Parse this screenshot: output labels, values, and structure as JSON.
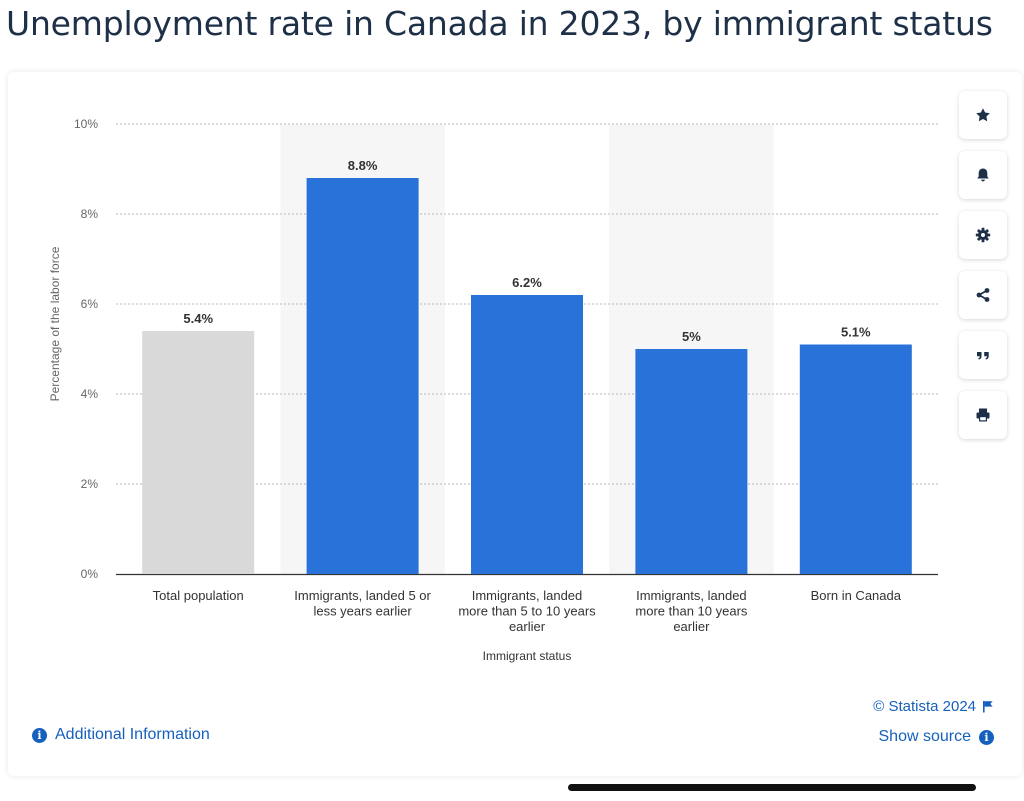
{
  "page": {
    "title": "Unemployment rate in Canada in 2023, by immigrant status"
  },
  "chart_data": {
    "type": "bar",
    "categories": [
      [
        "Total population"
      ],
      [
        "Immigrants, landed 5 or",
        "less years earlier"
      ],
      [
        "Immigrants, landed",
        "more than 5 to 10 years",
        "earlier"
      ],
      [
        "Immigrants, landed",
        "more than 10 years",
        "earlier"
      ],
      [
        "Born in Canada"
      ]
    ],
    "values": [
      5.4,
      8.8,
      6.2,
      5.0,
      5.1
    ],
    "value_labels": [
      "5.4%",
      "8.8%",
      "6.2%",
      "5%",
      "5.1%"
    ],
    "bar_colors": [
      "#d9d9d9",
      "#2872d9",
      "#2872d9",
      "#2872d9",
      "#2872d9"
    ],
    "xlabel": "Immigrant status",
    "ylabel": "Percentage of the labor force",
    "ylim": [
      0,
      10
    ],
    "yticks": [
      0,
      2,
      4,
      6,
      8,
      10
    ],
    "ytick_labels": [
      "0%",
      "2%",
      "4%",
      "6%",
      "8%",
      "10%"
    ],
    "grid": true,
    "alternating_band_color": "#f6f6f6"
  },
  "toolbar": {
    "icons": [
      "star-icon",
      "bell-icon",
      "gear-icon",
      "share-icon",
      "quote-icon",
      "print-icon"
    ]
  },
  "footer": {
    "additional_info": "Additional Information",
    "copyright": "© Statista 2024",
    "show_source": "Show source",
    "info_glyph": "i"
  },
  "colors": {
    "title": "#1e3047",
    "link": "#1660bd",
    "bar_primary": "#2872d9",
    "bar_total": "#d9d9d9"
  }
}
